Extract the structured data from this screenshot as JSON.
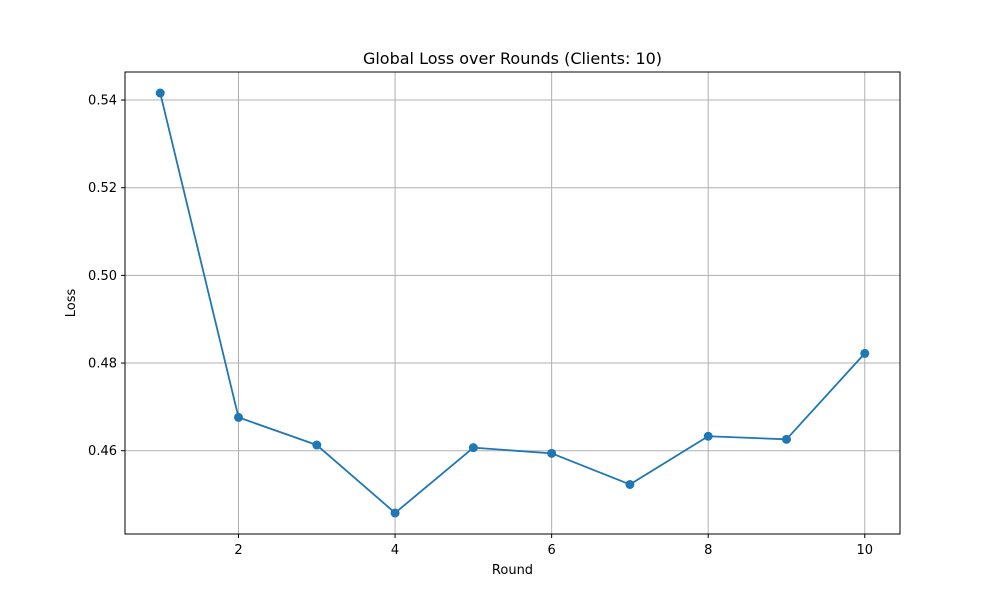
{
  "chart_data": {
    "type": "line",
    "title": "Global Loss over Rounds (Clients: 10)",
    "xlabel": "Round",
    "ylabel": "Loss",
    "x": [
      1,
      2,
      3,
      4,
      5,
      6,
      7,
      8,
      9,
      10
    ],
    "series": [
      {
        "values": [
          0.5416,
          0.4676,
          0.4613,
          0.4458,
          0.4607,
          0.4594,
          0.4523,
          0.4633,
          0.4626,
          0.4822
        ],
        "color": "#1f77b4",
        "marker": "circle"
      }
    ],
    "xticks": [
      2,
      4,
      6,
      8,
      10
    ],
    "xtick_labels": [
      "2",
      "4",
      "6",
      "8",
      "10"
    ],
    "yticks": [
      0.46,
      0.48,
      0.5,
      0.52,
      0.54
    ],
    "ytick_labels": [
      "0.46",
      "0.48",
      "0.50",
      "0.52",
      "0.54"
    ],
    "xlim": [
      0.55,
      10.45
    ],
    "ylim": [
      0.441,
      0.5464
    ],
    "grid": true,
    "colors": {
      "grid": "#b0b0b0",
      "axes": "#000000",
      "background": "#ffffff"
    }
  }
}
